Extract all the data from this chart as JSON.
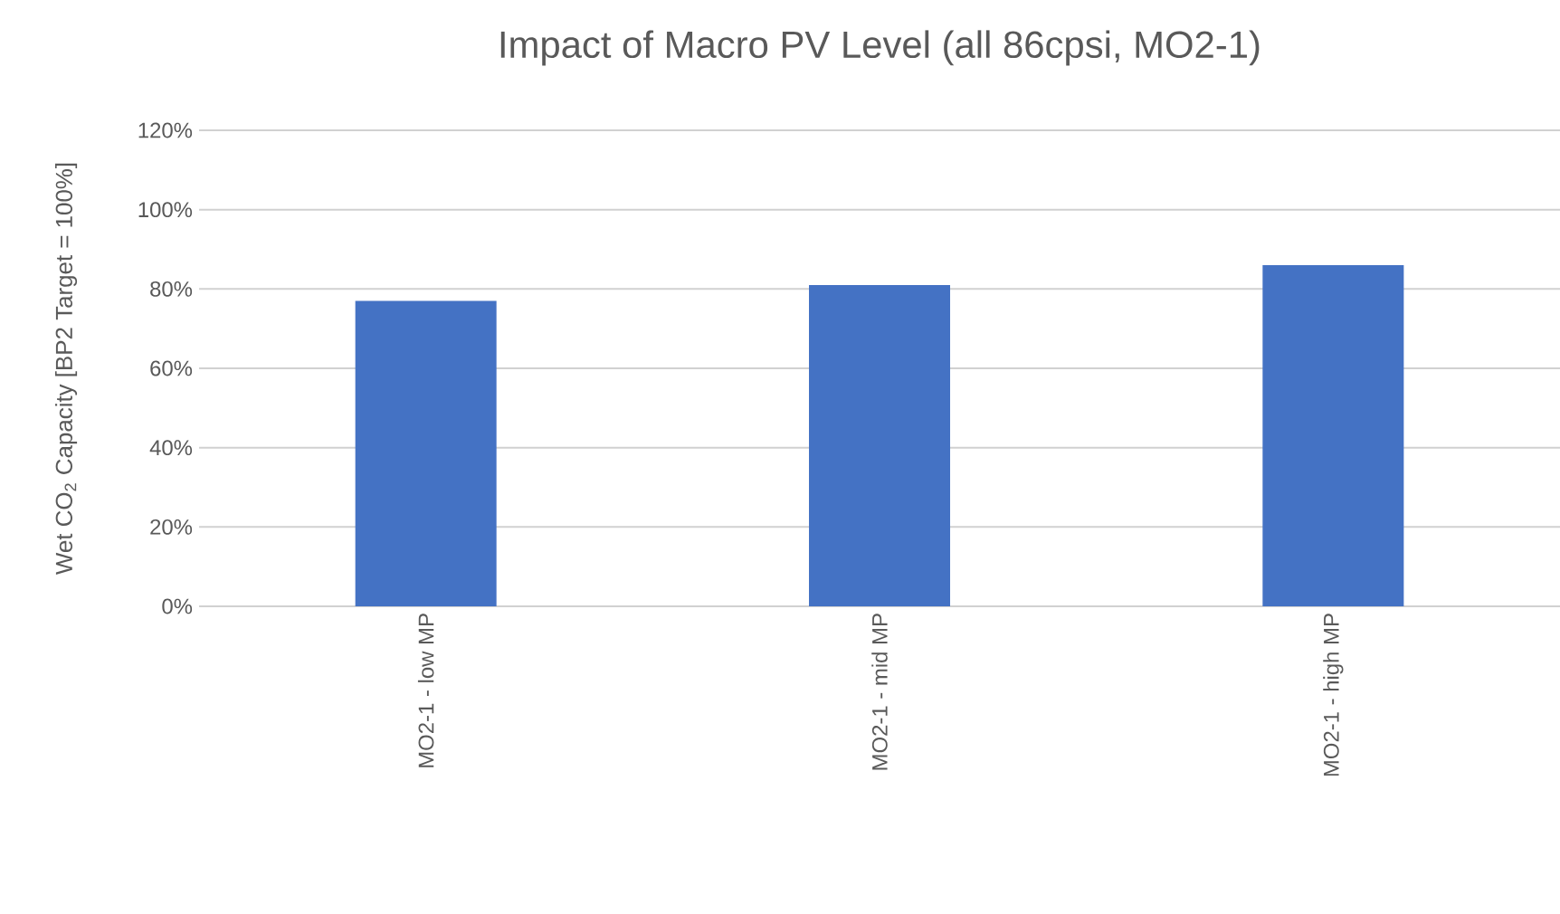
{
  "chart_data": {
    "type": "bar",
    "title": "Impact of Macro PV Level (all 86cpsi, MO2-1)",
    "ylabel": "Wet CO$_{2}$ Capacity [BP2 Target = 100%]",
    "categories": [
      "MO2-1 - low MP",
      "MO2-1 - mid MP",
      "MO2-1 - high MP"
    ],
    "values": [
      77,
      81,
      86
    ],
    "color": "#4472c4",
    "ylim": [
      0,
      120
    ],
    "yticks": [
      {
        "value": 0,
        "label": "0%"
      },
      {
        "value": 20,
        "label": "20%"
      },
      {
        "value": 40,
        "label": "40%"
      },
      {
        "value": 60,
        "label": "60%"
      },
      {
        "value": 80,
        "label": "80%"
      },
      {
        "value": 100,
        "label": "100%"
      },
      {
        "value": 120,
        "label": "120%"
      }
    ],
    "grid": "y"
  }
}
